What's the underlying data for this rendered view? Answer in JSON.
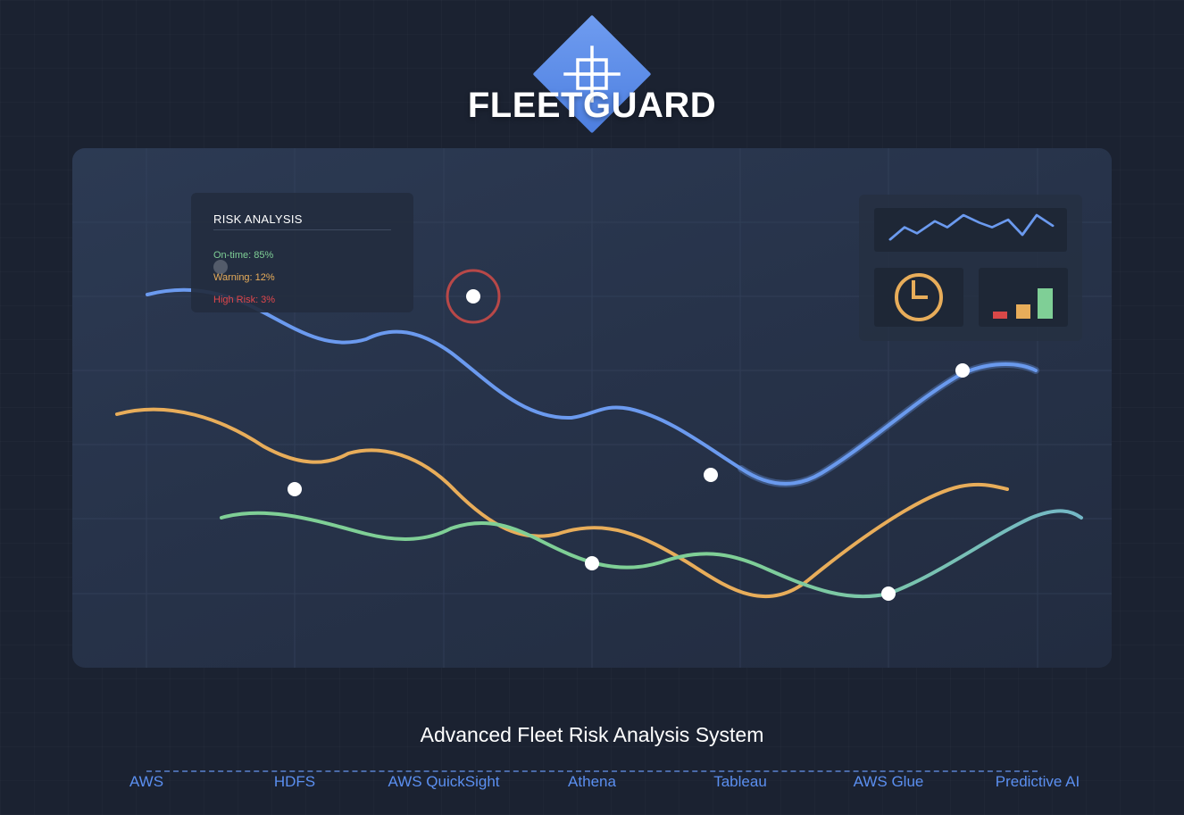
{
  "brand": {
    "title": "FLEETGUARD",
    "logo_icon": "grid-target-icon",
    "accent_color": "#5b8ff0"
  },
  "risk_card": {
    "title": "RISK ANALYSIS",
    "rows": [
      {
        "label": "On-time: 85%",
        "color": "#7fcf96"
      },
      {
        "label": "Warning: 12%",
        "color": "#e8ad5a"
      },
      {
        "label": "High Risk: 3%",
        "color": "#e0474c"
      }
    ]
  },
  "widgets": {
    "sparkline_icon": "sparkline-icon",
    "clock_icon": "clock-icon",
    "bars_icon": "bar-chart-icon",
    "bar_colors": [
      "#d94848",
      "#e8ad5a",
      "#7fcf96"
    ],
    "bar_levels": [
      0.24,
      0.47,
      1.0
    ]
  },
  "series_colors": {
    "blue": "#6b9aef",
    "orange": "#e8ad5a",
    "green": "#7fcf96",
    "alert_ring": "#b84848"
  },
  "tagline": "Advanced Fleet Risk Analysis System",
  "technologies": [
    "AWS",
    "HDFS",
    "AWS QuickSight",
    "Athena",
    "Tableau",
    "AWS Glue",
    "Predictive AI"
  ]
}
